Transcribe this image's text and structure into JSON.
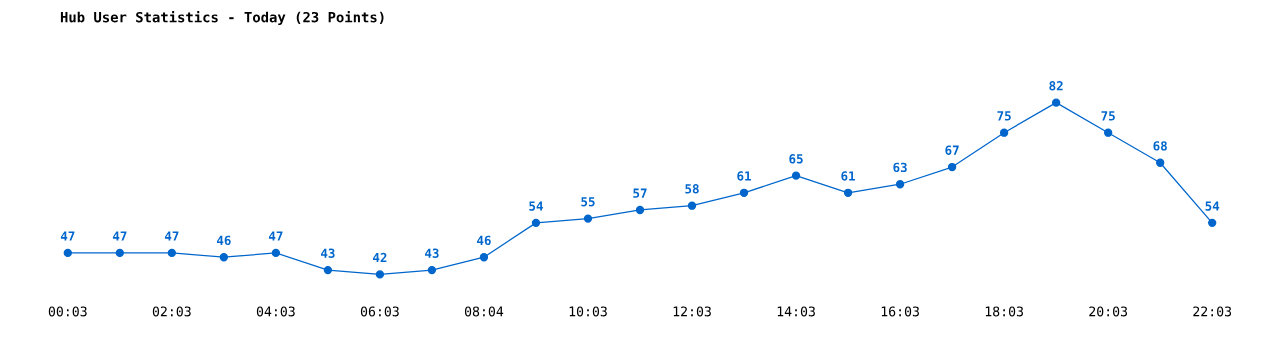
{
  "chart_data": {
    "type": "line",
    "title": "Hub User Statistics - Today (23 Points)",
    "categories": [
      "00:03",
      null,
      "02:03",
      null,
      "04:03",
      null,
      "06:03",
      null,
      "08:04",
      null,
      "10:03",
      null,
      "12:03",
      null,
      "14:03",
      null,
      "16:03",
      null,
      "18:03",
      null,
      "20:03",
      null,
      "22:03"
    ],
    "values": [
      47,
      47,
      47,
      46,
      47,
      43,
      42,
      43,
      46,
      54,
      55,
      57,
      58,
      61,
      65,
      61,
      63,
      67,
      75,
      82,
      75,
      68,
      54
    ],
    "color": "#0066cc",
    "data_labels": true,
    "marker": "circle",
    "line_style": "solid",
    "tick_labels": "x"
  }
}
